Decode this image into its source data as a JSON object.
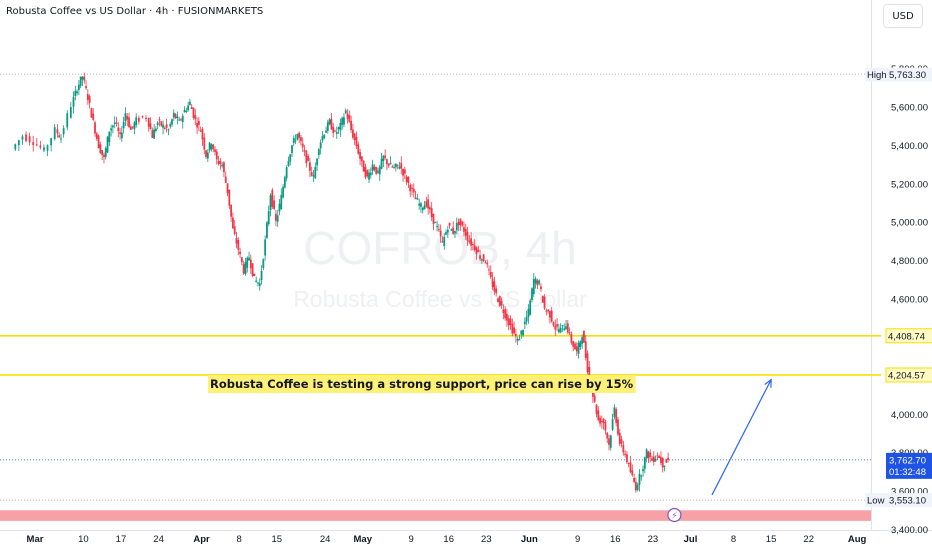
{
  "symbol_title": "Robusta Coffee vs US Dollar · 4h · FUSIONMARKETS",
  "currency": "USD",
  "watermark": {
    "ticker": "COFROB, 4h",
    "name": "Robusta Coffee vs US Dollar"
  },
  "annotation": "Robusta Coffee is testing a strong support, price can rise by 15%",
  "colors": {
    "up": "#089981",
    "down": "#f23645",
    "level_line": "#f5e000",
    "label_bg": "#fff9c4",
    "support_zone": "#f7a1a7",
    "arrow": "#2962ff",
    "last_price_bg": "#1e53e5"
  },
  "chart_data": {
    "type": "candlestick",
    "ylim": [
      3400,
      5850
    ],
    "y_ticks": [
      "5,800.00",
      "5,600.00",
      "5,400.00",
      "5,200.00",
      "5,000.00",
      "4,800.00",
      "4,600.00",
      "4,400.00",
      "4,200.00",
      "4,000.00",
      "3,800.00",
      "3,600.00",
      "3,400.00"
    ],
    "y_tick_values": [
      5800,
      5600,
      5400,
      5200,
      5000,
      4800,
      4600,
      4400,
      4200,
      4000,
      3800,
      3600,
      3400
    ],
    "x_ticks": [
      "Mar",
      "10",
      "17",
      "24",
      "Apr",
      "8",
      "15",
      "24",
      "May",
      "9",
      "16",
      "23",
      "Jun",
      "9",
      "16",
      "23",
      "Jul",
      "8",
      "15",
      "22",
      "Aug"
    ],
    "x_tick_bold": [
      "Mar",
      "Apr",
      "May",
      "Jun",
      "Jul",
      "Aug"
    ],
    "x_axis_span_days": [
      0,
      155
    ],
    "x_tick_days": [
      0,
      9,
      16,
      23,
      31,
      38,
      45,
      54,
      61,
      70,
      77,
      84,
      92,
      101,
      108,
      115,
      122,
      130,
      137,
      144,
      153
    ],
    "price_path": [
      [
        -4,
        5380
      ],
      [
        -2,
        5450
      ],
      [
        0,
        5420
      ],
      [
        2,
        5370
      ],
      [
        4,
        5480
      ],
      [
        5,
        5440
      ],
      [
        7,
        5610
      ],
      [
        8,
        5700
      ],
      [
        9,
        5760
      ],
      [
        10,
        5650
      ],
      [
        11,
        5520
      ],
      [
        12,
        5400
      ],
      [
        13,
        5330
      ],
      [
        14,
        5480
      ],
      [
        15,
        5520
      ],
      [
        16,
        5440
      ],
      [
        17,
        5570
      ],
      [
        18,
        5480
      ],
      [
        19,
        5530
      ],
      [
        21,
        5550
      ],
      [
        22,
        5450
      ],
      [
        23,
        5520
      ],
      [
        24,
        5500
      ],
      [
        25,
        5480
      ],
      [
        26,
        5560
      ],
      [
        27,
        5520
      ],
      [
        28,
        5580
      ],
      [
        29,
        5620
      ],
      [
        30,
        5530
      ],
      [
        31,
        5480
      ],
      [
        32,
        5350
      ],
      [
        33,
        5420
      ],
      [
        34,
        5320
      ],
      [
        35,
        5300
      ],
      [
        36,
        5160
      ],
      [
        37,
        4960
      ],
      [
        38,
        4860
      ],
      [
        39,
        4750
      ],
      [
        40,
        4820
      ],
      [
        41,
        4700
      ],
      [
        42,
        4680
      ],
      [
        43,
        4900
      ],
      [
        44,
        5150
      ],
      [
        45,
        5000
      ],
      [
        46,
        5130
      ],
      [
        47,
        5300
      ],
      [
        48,
        5400
      ],
      [
        49,
        5460
      ],
      [
        50,
        5380
      ],
      [
        51,
        5300
      ],
      [
        52,
        5230
      ],
      [
        53,
        5400
      ],
      [
        54,
        5470
      ],
      [
        55,
        5520
      ],
      [
        56,
        5460
      ],
      [
        57,
        5500
      ],
      [
        58,
        5580
      ],
      [
        59,
        5480
      ],
      [
        60,
        5400
      ],
      [
        61,
        5300
      ],
      [
        62,
        5230
      ],
      [
        63,
        5300
      ],
      [
        64,
        5250
      ],
      [
        65,
        5340
      ],
      [
        66,
        5300
      ],
      [
        67,
        5280
      ],
      [
        68,
        5300
      ],
      [
        69,
        5240
      ],
      [
        70,
        5180
      ],
      [
        71,
        5120
      ],
      [
        72,
        5080
      ],
      [
        73,
        5100
      ],
      [
        74,
        5030
      ],
      [
        75,
        4970
      ],
      [
        76,
        4890
      ],
      [
        77,
        4980
      ],
      [
        78,
        4950
      ],
      [
        79,
        5000
      ],
      [
        80,
        4960
      ],
      [
        81,
        4900
      ],
      [
        82,
        4870
      ],
      [
        83,
        4820
      ],
      [
        84,
        4800
      ],
      [
        85,
        4700
      ],
      [
        86,
        4620
      ],
      [
        87,
        4560
      ],
      [
        88,
        4500
      ],
      [
        89,
        4440
      ],
      [
        90,
        4380
      ],
      [
        91,
        4450
      ],
      [
        92,
        4530
      ],
      [
        93,
        4700
      ],
      [
        94,
        4680
      ],
      [
        95,
        4550
      ],
      [
        96,
        4520
      ],
      [
        97,
        4450
      ],
      [
        98,
        4440
      ],
      [
        99,
        4470
      ],
      [
        100,
        4380
      ],
      [
        101,
        4320
      ],
      [
        102,
        4420
      ],
      [
        103,
        4240
      ],
      [
        104,
        4100
      ],
      [
        105,
        3970
      ],
      [
        106,
        3960
      ],
      [
        107,
        3840
      ],
      [
        108,
        4030
      ],
      [
        109,
        3850
      ],
      [
        110,
        3790
      ],
      [
        111,
        3700
      ],
      [
        112,
        3620
      ],
      [
        113,
        3700
      ],
      [
        114,
        3800
      ],
      [
        115,
        3760
      ],
      [
        116,
        3790
      ],
      [
        117,
        3740
      ],
      [
        118,
        3763
      ]
    ],
    "levels": [
      {
        "value": 4408.74,
        "label": "4,408.74"
      },
      {
        "value": 4204.57,
        "label": "4,204.57"
      }
    ],
    "support_zone": [
      3445,
      3500
    ],
    "high": {
      "label": "High",
      "value": 5763.3,
      "text": "5,763.30",
      "day": 9
    },
    "low": {
      "label": "Low",
      "value": 3553.1,
      "text": "3,553.10",
      "day": 112
    },
    "last": {
      "value": 3762.7,
      "text": "3,762.70",
      "countdown": "01:32:48"
    },
    "arrow": {
      "from": [
        126,
        3580
      ],
      "to": [
        137,
        4180
      ]
    },
    "label_position": {
      "day": 70,
      "value": 4060
    },
    "event_marker_day": 119
  }
}
